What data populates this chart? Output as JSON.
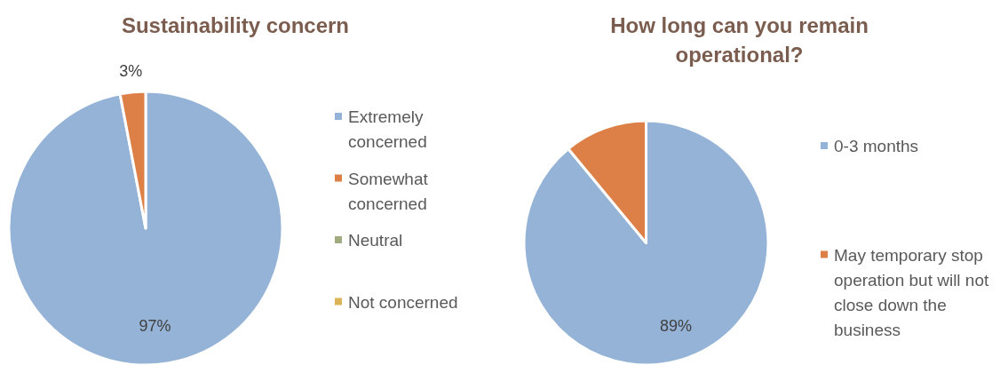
{
  "chart_data": [
    {
      "type": "pie",
      "title": "Sustainability concern",
      "categories": [
        "Extremely concerned",
        "Somewhat concerned",
        "Neutral",
        "Not concerned"
      ],
      "values": [
        97,
        3,
        0,
        0
      ],
      "colors": [
        "#95b3d7",
        "#dd8047",
        "#a0ac80",
        "#dcb356"
      ],
      "value_labels": [
        "97%",
        "3%",
        null,
        null
      ],
      "legend": "right"
    },
    {
      "type": "pie",
      "title": "How long can you remain operational?",
      "categories": [
        "0-3 months",
        "May temporary stop operation but will not close down the business"
      ],
      "values": [
        89,
        11
      ],
      "colors": [
        "#95b3d7",
        "#dd8047"
      ],
      "value_labels": [
        "89%",
        null
      ],
      "legend": "right"
    }
  ]
}
